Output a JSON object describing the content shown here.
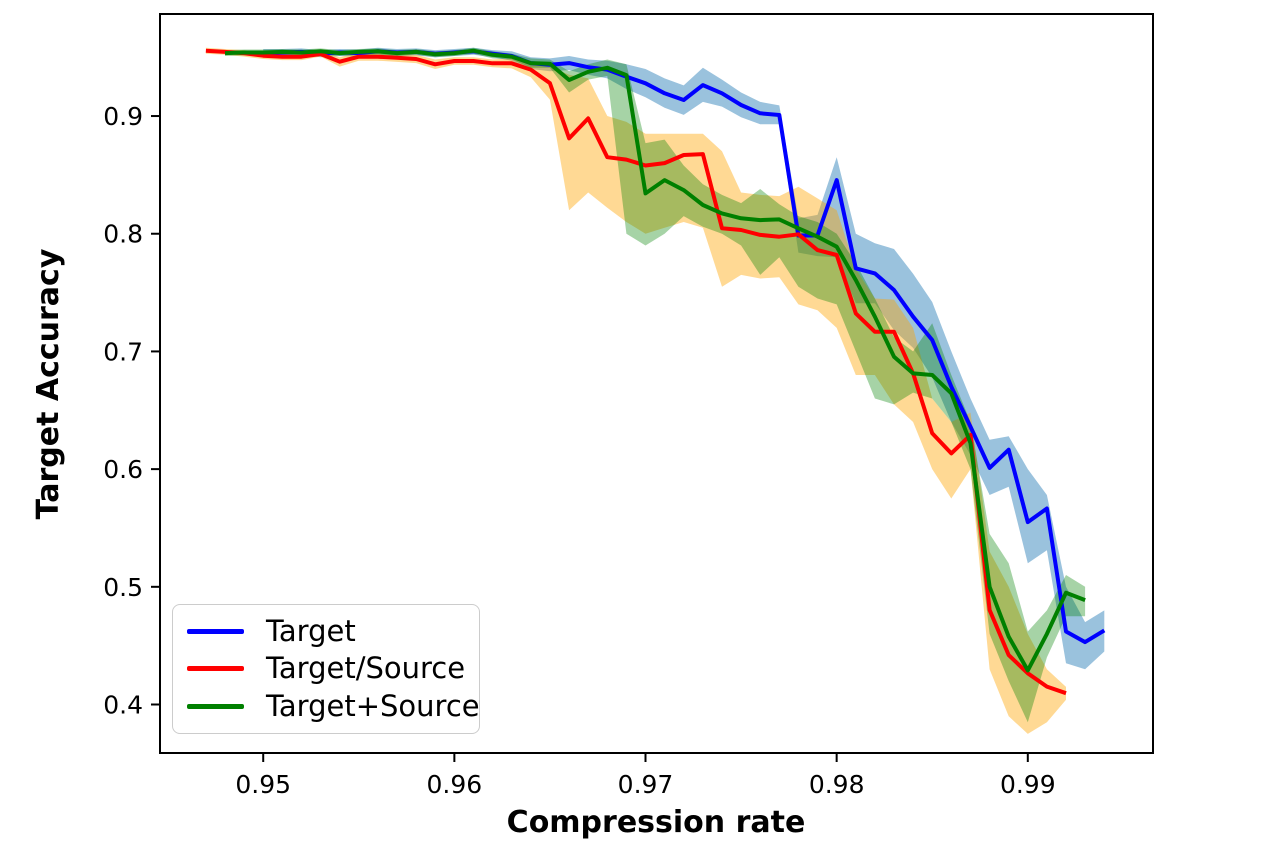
{
  "figure": {
    "background": "#ffffff",
    "spine_color": "#000000"
  },
  "legend": {
    "position": "lower left",
    "items": [
      {
        "label": "Target",
        "color": "#0000ff"
      },
      {
        "label": "Target/Source",
        "color": "#ff0000"
      },
      {
        "label": "Target+Source",
        "color": "#008000"
      }
    ]
  },
  "chart_data": {
    "type": "line",
    "title": "",
    "xlabel": "Compression rate",
    "ylabel": "Target Accuracy",
    "xlim": [
      0.9446,
      0.99655
    ],
    "ylim": [
      0.3588,
      0.9867
    ],
    "grid": false,
    "legend_position": "lower left",
    "xticks": [
      {
        "v": 0.95,
        "label": "0.95"
      },
      {
        "v": 0.96,
        "label": "0.96"
      },
      {
        "v": 0.97,
        "label": "0.97"
      },
      {
        "v": 0.98,
        "label": "0.98"
      },
      {
        "v": 0.99,
        "label": "0.99"
      }
    ],
    "yticks": [
      {
        "v": 0.4,
        "label": "0.4"
      },
      {
        "v": 0.5,
        "label": "0.5"
      },
      {
        "v": 0.6,
        "label": "0.6"
      },
      {
        "v": 0.7,
        "label": "0.7"
      },
      {
        "v": 0.8,
        "label": "0.8"
      },
      {
        "v": 0.9,
        "label": "0.9"
      }
    ],
    "series": [
      {
        "name": "Target",
        "color": "#0000ff",
        "band_color": "rgba(31,119,180,0.45)",
        "x": [
          0.95,
          0.951,
          0.952,
          0.953,
          0.954,
          0.955,
          0.956,
          0.957,
          0.958,
          0.959,
          0.96,
          0.961,
          0.962,
          0.963,
          0.964,
          0.965,
          0.966,
          0.967,
          0.968,
          0.969,
          0.97,
          0.971,
          0.972,
          0.973,
          0.974,
          0.975,
          0.976,
          0.977,
          0.978,
          0.979,
          0.98,
          0.981,
          0.982,
          0.983,
          0.984,
          0.985,
          0.986,
          0.987,
          0.988,
          0.989,
          0.99,
          0.991,
          0.992,
          0.993,
          0.994
        ],
        "y": [
          0.954,
          0.954,
          0.9545,
          0.953,
          0.954,
          0.9535,
          0.955,
          0.954,
          0.9545,
          0.953,
          0.954,
          0.955,
          0.953,
          0.951,
          0.945,
          0.9435,
          0.945,
          0.9415,
          0.9395,
          0.9334,
          0.9278,
          0.9193,
          0.9136,
          0.9263,
          0.9193,
          0.9094,
          0.9023,
          0.9009,
          0.7985,
          0.7985,
          0.8456,
          0.7706,
          0.7663,
          0.7522,
          0.7295,
          0.7097,
          0.67,
          0.636,
          0.601,
          0.6165,
          0.555,
          0.5665,
          0.462,
          0.453,
          0.463
        ],
        "band_hi": [
          0.957,
          0.957,
          0.9575,
          0.956,
          0.957,
          0.9565,
          0.958,
          0.957,
          0.9575,
          0.956,
          0.957,
          0.958,
          0.956,
          0.955,
          0.95,
          0.949,
          0.951,
          0.948,
          0.947,
          0.944,
          0.94,
          0.932,
          0.926,
          0.941,
          0.931,
          0.92,
          0.912,
          0.909,
          0.813,
          0.816,
          0.865,
          0.8,
          0.792,
          0.787,
          0.766,
          0.742,
          0.7,
          0.66,
          0.625,
          0.628,
          0.6,
          0.578,
          0.5,
          0.47,
          0.48
        ],
        "band_lo": [
          0.951,
          0.951,
          0.9515,
          0.95,
          0.951,
          0.9505,
          0.952,
          0.951,
          0.9515,
          0.95,
          0.951,
          0.952,
          0.95,
          0.947,
          0.94,
          0.938,
          0.939,
          0.935,
          0.932,
          0.923,
          0.916,
          0.907,
          0.901,
          0.912,
          0.908,
          0.899,
          0.893,
          0.893,
          0.784,
          0.781,
          0.78,
          0.741,
          0.741,
          0.718,
          0.703,
          0.678,
          0.64,
          0.612,
          0.578,
          0.585,
          0.52,
          0.531,
          0.435,
          0.43,
          0.445
        ]
      },
      {
        "name": "Target/Source",
        "color": "#ff0000",
        "band_color": "rgba(255,165,0,0.42)",
        "x": [
          0.947,
          0.948,
          0.949,
          0.95,
          0.951,
          0.952,
          0.953,
          0.954,
          0.955,
          0.956,
          0.957,
          0.958,
          0.959,
          0.96,
          0.961,
          0.962,
          0.963,
          0.964,
          0.965,
          0.966,
          0.967,
          0.968,
          0.969,
          0.97,
          0.971,
          0.972,
          0.973,
          0.974,
          0.975,
          0.976,
          0.977,
          0.978,
          0.979,
          0.98,
          0.981,
          0.982,
          0.983,
          0.984,
          0.985,
          0.986,
          0.987,
          0.988,
          0.989,
          0.99,
          0.991,
          0.992
        ],
        "y": [
          0.9555,
          0.9545,
          0.9533,
          0.9513,
          0.9504,
          0.9504,
          0.9527,
          0.9462,
          0.9504,
          0.9504,
          0.9495,
          0.9485,
          0.944,
          0.9468,
          0.9468,
          0.9448,
          0.9448,
          0.9395,
          0.928,
          0.881,
          0.898,
          0.865,
          0.863,
          0.858,
          0.86,
          0.8669,
          0.8677,
          0.8046,
          0.8032,
          0.799,
          0.7975,
          0.7995,
          0.7861,
          0.7819,
          0.7323,
          0.7167,
          0.7167,
          0.6813,
          0.6304,
          0.6134,
          0.629,
          0.4803,
          0.442,
          0.4265,
          0.4152,
          0.4096
        ],
        "band_hi": [
          0.958,
          0.957,
          0.956,
          0.954,
          0.953,
          0.953,
          0.955,
          0.95,
          0.954,
          0.954,
          0.953,
          0.952,
          0.948,
          0.95,
          0.95,
          0.948,
          0.949,
          0.946,
          0.942,
          0.935,
          0.932,
          0.9,
          0.895,
          0.885,
          0.885,
          0.885,
          0.885,
          0.87,
          0.835,
          0.833,
          0.832,
          0.84,
          0.83,
          0.82,
          0.77,
          0.745,
          0.744,
          0.72,
          0.66,
          0.64,
          0.648,
          0.53,
          0.5,
          0.46,
          0.43,
          0.415
        ],
        "band_lo": [
          0.953,
          0.952,
          0.9505,
          0.9485,
          0.9475,
          0.9475,
          0.9505,
          0.942,
          0.947,
          0.947,
          0.946,
          0.945,
          0.94,
          0.9435,
          0.9435,
          0.9415,
          0.9405,
          0.933,
          0.914,
          0.82,
          0.835,
          0.822,
          0.81,
          0.8,
          0.805,
          0.81,
          0.805,
          0.755,
          0.765,
          0.762,
          0.763,
          0.74,
          0.735,
          0.72,
          0.68,
          0.68,
          0.655,
          0.64,
          0.6,
          0.575,
          0.6,
          0.43,
          0.39,
          0.375,
          0.385,
          0.404
        ]
      },
      {
        "name": "Target+Source",
        "color": "#008000",
        "band_color": "rgba(0,128,0,0.35)",
        "x": [
          0.948,
          0.949,
          0.95,
          0.951,
          0.952,
          0.953,
          0.954,
          0.955,
          0.956,
          0.957,
          0.958,
          0.959,
          0.96,
          0.961,
          0.962,
          0.963,
          0.964,
          0.965,
          0.966,
          0.967,
          0.968,
          0.969,
          0.97,
          0.971,
          0.972,
          0.973,
          0.974,
          0.975,
          0.976,
          0.977,
          0.978,
          0.979,
          0.98,
          0.981,
          0.982,
          0.983,
          0.984,
          0.985,
          0.986,
          0.987,
          0.988,
          0.989,
          0.99,
          0.991,
          0.992,
          0.993
        ],
        "y": [
          0.9535,
          0.954,
          0.954,
          0.9545,
          0.954,
          0.955,
          0.9535,
          0.9545,
          0.955,
          0.9535,
          0.9545,
          0.9525,
          0.9535,
          0.9555,
          0.952,
          0.9505,
          0.945,
          0.9445,
          0.9306,
          0.9376,
          0.941,
          0.9348,
          0.8343,
          0.8456,
          0.8371,
          0.8244,
          0.8173,
          0.8131,
          0.8116,
          0.8122,
          0.8046,
          0.7975,
          0.789,
          0.7606,
          0.7295,
          0.6955,
          0.6813,
          0.68,
          0.6644,
          0.622,
          0.5,
          0.4576,
          0.429,
          0.46,
          0.495,
          0.4887
        ],
        "band_hi": [
          0.956,
          0.9565,
          0.9565,
          0.957,
          0.9565,
          0.9575,
          0.956,
          0.957,
          0.9575,
          0.956,
          0.957,
          0.955,
          0.956,
          0.958,
          0.955,
          0.953,
          0.949,
          0.948,
          0.938,
          0.944,
          0.948,
          0.944,
          0.877,
          0.88,
          0.858,
          0.842,
          0.833,
          0.826,
          0.838,
          0.825,
          0.815,
          0.81,
          0.8,
          0.775,
          0.745,
          0.712,
          0.7,
          0.724,
          0.68,
          0.64,
          0.545,
          0.52,
          0.462,
          0.48,
          0.51,
          0.5
        ],
        "band_lo": [
          0.951,
          0.9515,
          0.9515,
          0.952,
          0.9515,
          0.9525,
          0.951,
          0.952,
          0.9525,
          0.951,
          0.952,
          0.95,
          0.951,
          0.953,
          0.949,
          0.948,
          0.941,
          0.941,
          0.92,
          0.931,
          0.934,
          0.8,
          0.79,
          0.8,
          0.815,
          0.806,
          0.8,
          0.79,
          0.765,
          0.78,
          0.755,
          0.745,
          0.74,
          0.7,
          0.66,
          0.655,
          0.665,
          0.66,
          0.64,
          0.6,
          0.46,
          0.42,
          0.385,
          0.44,
          0.475,
          0.475
        ]
      }
    ]
  }
}
